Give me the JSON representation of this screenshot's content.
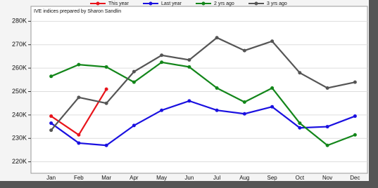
{
  "chart_data": {
    "type": "line",
    "subtitle": "IVE indices prepared by Sharon Sandlin",
    "categories": [
      "Jan",
      "Feb",
      "Mar",
      "Apr",
      "May",
      "Jun",
      "Jul",
      "Aug",
      "Sep",
      "Oct",
      "Nov",
      "Dec"
    ],
    "series": [
      {
        "name": "This year",
        "color": "#e8141b",
        "values": [
          239.5,
          231.5,
          251,
          null,
          null,
          null,
          null,
          null,
          null,
          null,
          null,
          null
        ]
      },
      {
        "name": "Last year",
        "color": "#1a10e0",
        "values": [
          236.5,
          228,
          227,
          235.5,
          242,
          246,
          242,
          240.5,
          243.5,
          234.5,
          235,
          239.5
        ]
      },
      {
        "name": "2 yrs ago",
        "color": "#13861a",
        "values": [
          256.5,
          261.5,
          260.5,
          254,
          262.5,
          260.5,
          251.5,
          245.5,
          251.5,
          236.5,
          227,
          231.5
        ]
      },
      {
        "name": "3 yrs ago",
        "color": "#555555",
        "values": [
          233.5,
          247.5,
          245,
          258.5,
          265.5,
          263.5,
          273,
          267.5,
          271.5,
          258,
          251.5,
          254
        ]
      }
    ],
    "ylim": [
      216,
      284
    ],
    "yticks": [
      {
        "value": 220,
        "label": "220K"
      },
      {
        "value": 230,
        "label": "230K"
      },
      {
        "value": 240,
        "label": "240K"
      },
      {
        "value": 250,
        "label": "250K"
      },
      {
        "value": 260,
        "label": "260K"
      },
      {
        "value": 270,
        "label": "270K"
      },
      {
        "value": 280,
        "label": "280K"
      }
    ],
    "grid": true
  }
}
